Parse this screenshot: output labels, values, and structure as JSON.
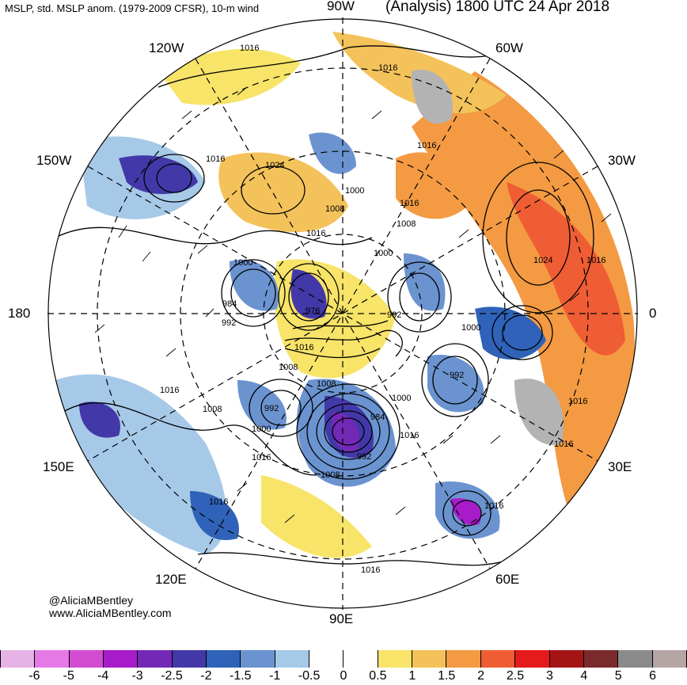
{
  "header": {
    "left": "MSLP, std. MSLP anom. (1979-2009 CFSR), 10-m wind",
    "right": "(Analysis) 1800 UTC 24 Apr 2018"
  },
  "longitude_labels": {
    "w90": "90W",
    "w120": "120W",
    "w60": "60W",
    "w150": "150W",
    "w30": "30W",
    "l180": "180",
    "l0": "0",
    "e150": "150E",
    "e30": "30E",
    "e120": "120E",
    "e60": "60E",
    "e90": "90E"
  },
  "credits": {
    "twitter": "@AliciaMBentley",
    "website": "www.AliciaMBentley.com"
  },
  "contour_labels": [
    "1016",
    "1016",
    "1016",
    "1024",
    "1016",
    "1000",
    "1008",
    "1016",
    "1016",
    "1008",
    "1000",
    "1000",
    "984",
    "992",
    "976",
    "992",
    "1000",
    "1016",
    "1008",
    "1008",
    "1000",
    "992",
    "1016",
    "1008",
    "992",
    "984",
    "1000",
    "1016",
    "1016",
    "1016",
    "1008",
    "992",
    "1016",
    "1024",
    "1016",
    "1016",
    "1016",
    "1016"
  ],
  "colorbar": {
    "colors": [
      "#e6b3e6",
      "#e57ae6",
      "#d24cd2",
      "#a81bc8",
      "#7329b6",
      "#4338a8",
      "#2f62b8",
      "#6b93d0",
      "#a6c9e8",
      "#ffffff",
      "#ffffff",
      "#f7e468",
      "#f3c25a",
      "#f39a42",
      "#ef5d34",
      "#e41a1c",
      "#a51515",
      "#7a2a2a",
      "#8a8a8a",
      "#b5a5a5"
    ],
    "ticks": [
      "-6",
      "-5",
      "-4",
      "-3",
      "-2.5",
      "-2",
      "-1.5",
      "-1",
      "-0.5",
      "0",
      "0.5",
      "1",
      "1.5",
      "2",
      "2.5",
      "3",
      "4",
      "5",
      "6"
    ]
  }
}
